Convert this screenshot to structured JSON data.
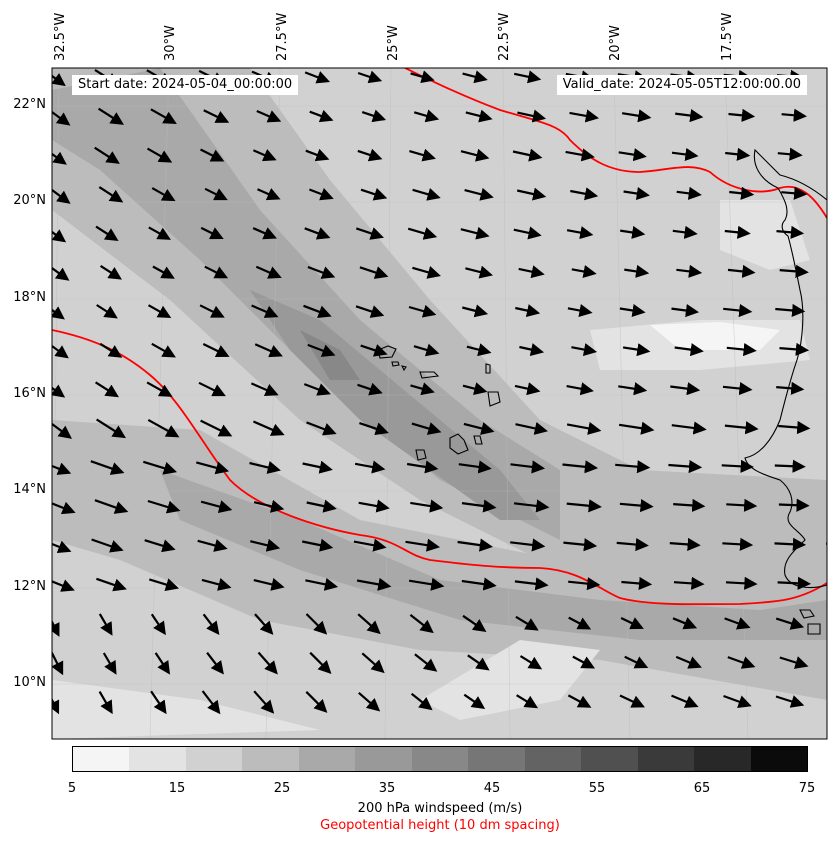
{
  "map": {
    "start_date": "Start date: 2024-05-04_00:00:00",
    "valid_date": "Valid_date: 2024-05-05T12:00:00.00",
    "longitude_labels": [
      "32.5°W",
      "30°W",
      "27.5°W",
      "25°W",
      "22.5°W",
      "20°W",
      "17.5°W"
    ],
    "latitude_labels": [
      "22°N",
      "20°N",
      "18°N",
      "16°N",
      "14°N",
      "12°N",
      "10°N"
    ],
    "geopotential_color": "#ff0000",
    "wind_arrow_color": "#000000",
    "coastline_color": "#000000"
  },
  "colorbar": {
    "ticks": [
      "5",
      "15",
      "25",
      "35",
      "45",
      "55",
      "65",
      "75"
    ],
    "label": "200 hPa windspeed (m/s)",
    "sublabel": "Geopotential height (10 dm spacing)",
    "sublabel_color": "#ff0000",
    "colors": [
      "#f5f5f5",
      "#e3e3e3",
      "#d1d1d1",
      "#bcbcbc",
      "#a9a9a9",
      "#999999",
      "#888888",
      "#767676",
      "#636363",
      "#505050",
      "#3a3a3a",
      "#282828",
      "#0b0b0b"
    ]
  }
}
